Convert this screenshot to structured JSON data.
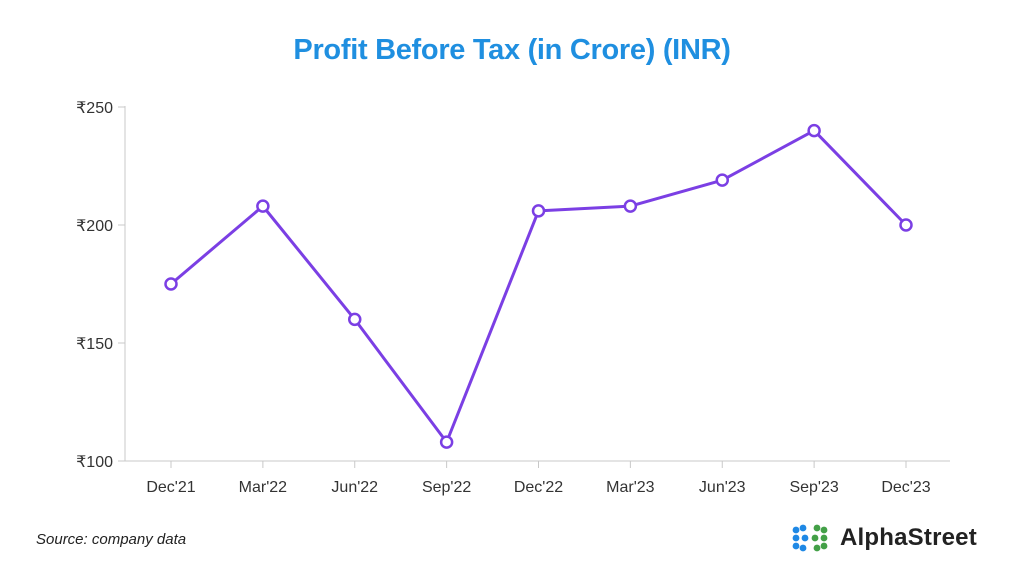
{
  "chart_data": {
    "type": "line",
    "title": "Profit Before Tax (in Crore) (INR)",
    "categories": [
      "Dec'21",
      "Mar'22",
      "Jun'22",
      "Sep'22",
      "Dec'22",
      "Mar'23",
      "Jun'23",
      "Sep'23",
      "Dec'23"
    ],
    "values": [
      175,
      208,
      160,
      108,
      206,
      208,
      219,
      240,
      200
    ],
    "ylim": [
      100,
      250
    ],
    "yticks": [
      100,
      150,
      200,
      250
    ],
    "ytick_labels": [
      "₹100",
      "₹150",
      "₹200",
      "₹250"
    ],
    "grid": false,
    "legend": "none"
  },
  "colors": {
    "title": "#1f8fe0",
    "line": "#7b3fe4",
    "axis": "#c8c8c8",
    "logo_blue": "#1e88e5",
    "logo_green": "#43a047"
  },
  "footer": {
    "source": "Source: company data",
    "brand": "AlphaStreet",
    "brand_icon": "alphastreet-logo-icon"
  }
}
